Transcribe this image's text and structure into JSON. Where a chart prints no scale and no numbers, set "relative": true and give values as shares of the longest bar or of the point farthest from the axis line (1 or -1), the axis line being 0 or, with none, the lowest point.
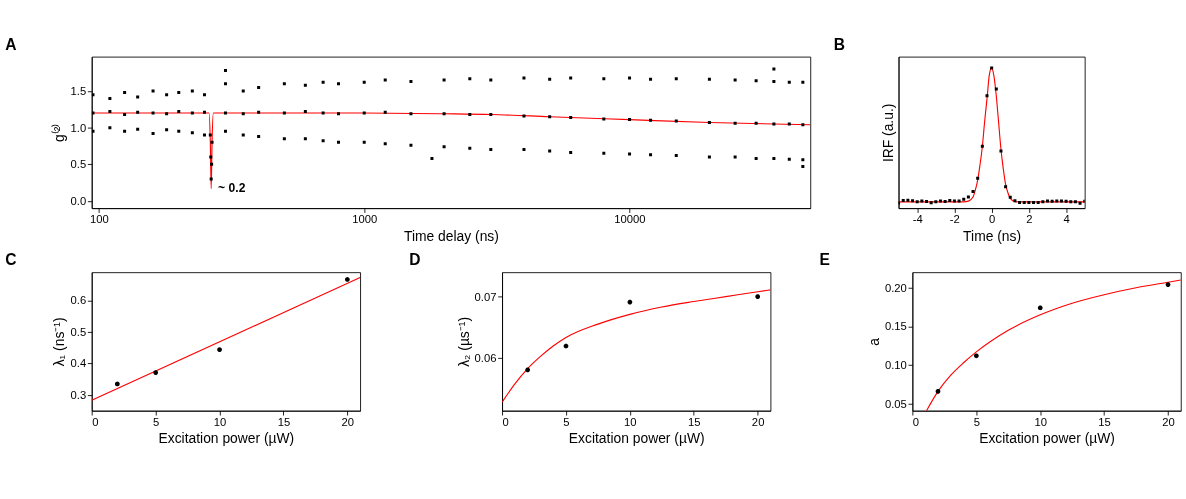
{
  "chart_data": [
    {
      "type": "scatter",
      "title": "A",
      "xlabel": "Time delay (ns)",
      "ylabel": "g⁽²⁾",
      "log": "x",
      "grid": false,
      "xlim": [
        94,
        48000
      ],
      "ylim": [
        -0.1,
        1.97
      ],
      "xticks": [
        100,
        1000,
        10000
      ],
      "yticks": [
        {
          "value": 0,
          "label": "0.0"
        },
        {
          "value": 0.5,
          "label": "0.5"
        },
        {
          "value": 1,
          "label": "1.0"
        },
        {
          "value": 1.5,
          "label": "1.5"
        }
      ],
      "annotations": [
        {
          "text": "~ 0.2",
          "x": 265,
          "y": 0.17
        }
      ],
      "series": [
        {
          "color": "#000000",
          "marker": "square",
          "x": [
            95,
            110,
            125,
            140,
            160,
            180,
            200,
            225,
            250,
            300,
            350,
            400,
            500,
            600,
            700,
            800,
            1000,
            1200,
            1500,
            2000,
            2500,
            3000,
            4000,
            5000,
            6000,
            8000,
            10000,
            12000,
            15000,
            20000,
            25000,
            30000,
            35000,
            40000,
            45000,
            95,
            110,
            125,
            140,
            160,
            180,
            200,
            225,
            250,
            300,
            350,
            400,
            500,
            600,
            700,
            800,
            1000,
            1200,
            1500,
            2000,
            2500,
            3000,
            4000,
            5000,
            6000,
            8000,
            10000,
            12000,
            15000,
            20000,
            25000,
            30000,
            35000,
            40000,
            45000,
            95,
            110,
            125,
            140,
            160,
            180,
            200,
            225,
            250,
            300,
            350,
            400,
            500,
            600,
            700,
            800,
            1000,
            1200,
            1500,
            2000,
            2500,
            3000,
            4000,
            5000,
            6000,
            8000,
            10000,
            12000,
            15000,
            20000,
            25000,
            30000,
            35000,
            40000,
            45000,
            263,
            264,
            265,
            266,
            267,
            300,
            1800,
            35000,
            45000
          ],
          "values": [
            1.45,
            1.4,
            1.48,
            1.42,
            1.5,
            1.45,
            1.48,
            1.5,
            1.45,
            1.6,
            1.5,
            1.55,
            1.6,
            1.58,
            1.62,
            1.6,
            1.62,
            1.65,
            1.63,
            1.65,
            1.67,
            1.65,
            1.68,
            1.66,
            1.68,
            1.67,
            1.68,
            1.66,
            1.67,
            1.66,
            1.65,
            1.64,
            1.63,
            1.62,
            1.62,
            1.2,
            1.22,
            1.18,
            1.21,
            1.2,
            1.19,
            1.22,
            1.2,
            1.21,
            1.2,
            1.19,
            1.21,
            1.2,
            1.22,
            1.2,
            1.19,
            1.2,
            1.21,
            1.19,
            1.19,
            1.18,
            1.18,
            1.16,
            1.15,
            1.14,
            1.12,
            1.11,
            1.1,
            1.09,
            1.07,
            1.06,
            1.06,
            1.05,
            1.05,
            1.04,
            0.95,
            1.0,
            0.95,
            0.98,
            0.92,
            0.97,
            0.95,
            0.93,
            0.9,
            0.95,
            0.9,
            0.88,
            0.85,
            0.85,
            0.82,
            0.8,
            0.8,
            0.78,
            0.76,
            0.74,
            0.72,
            0.7,
            0.7,
            0.68,
            0.66,
            0.65,
            0.64,
            0.63,
            0.62,
            0.6,
            0.6,
            0.58,
            0.58,
            0.57,
            0.56,
            0.9,
            0.6,
            0.3,
            0.5,
            0.8,
            1.78,
            0.58,
            1.8,
            0.47
          ]
        },
        {
          "type": "line",
          "color": "#ff0000",
          "x": [
            94,
            260,
            263,
            265,
            267,
            270,
            1000,
            2000,
            3000,
            5000,
            10000,
            20000,
            48000
          ],
          "values": [
            1.2,
            1.2,
            0.8,
            0.17,
            0.8,
            1.2,
            1.2,
            1.19,
            1.18,
            1.15,
            1.11,
            1.07,
            1.04
          ]
        }
      ]
    },
    {
      "type": "scatter",
      "title": "B",
      "xlabel": "Time (ns)",
      "ylabel": "IRF (a.u.)",
      "relative": true,
      "tick_labels": "x",
      "grid": false,
      "xlim": [
        -5,
        5
      ],
      "xticks": [
        -4,
        -2,
        0,
        2,
        4
      ],
      "series": [
        {
          "color": "#000000",
          "marker": "square",
          "x": [
            -5,
            -4.75,
            -4.5,
            -4.25,
            -4,
            -3.75,
            -3.5,
            -3.25,
            -3,
            -2.75,
            -2.5,
            -2.25,
            -2,
            -1.75,
            -1.5,
            -1.25,
            -1,
            -0.75,
            -0.5,
            -0.25,
            0,
            0.25,
            0.5,
            0.75,
            1,
            1.25,
            1.5,
            1.75,
            2,
            2.25,
            2.5,
            2.75,
            3,
            3.25,
            3.5,
            3.75,
            4,
            4.25,
            4.5,
            4.75,
            5
          ],
          "values": [
            0.037,
            0.055,
            0.057,
            0.053,
            0.045,
            0.051,
            0.047,
            0.039,
            0.045,
            0.051,
            0.047,
            0.055,
            0.051,
            0.051,
            0.064,
            0.08,
            0.119,
            0.213,
            0.441,
            0.801,
            1,
            0.85,
            0.408,
            0.152,
            0.078,
            0.053,
            0.041,
            0.041,
            0.041,
            0.041,
            0.041,
            0.045,
            0.051,
            0.049,
            0.051,
            0.051,
            0.049,
            0.045,
            0.045,
            0.035,
            0.049
          ]
        },
        {
          "type": "line",
          "color": "#ff0000",
          "x": [
            -5,
            -1.5,
            -1.25,
            -1,
            -0.875,
            -0.75,
            -0.625,
            -0.5,
            -0.375,
            -0.25,
            -0.125,
            0,
            0.125,
            0.25,
            0.375,
            0.5,
            0.625,
            0.75,
            0.875,
            1,
            1.25,
            1.5,
            5
          ],
          "values": [
            0.045,
            0.045,
            0.05,
            0.08,
            0.13,
            0.2,
            0.31,
            0.44,
            0.62,
            0.78,
            0.95,
            1.0,
            0.94,
            0.8,
            0.61,
            0.42,
            0.28,
            0.17,
            0.11,
            0.07,
            0.047,
            0.045,
            0.045
          ]
        }
      ]
    },
    {
      "type": "scatter",
      "title": "C",
      "xlabel": "Excitation power (µW)",
      "ylabel": "λ₁ (ns⁻¹)",
      "grid": false,
      "xlim": [
        0,
        21
      ],
      "ylim": [
        0.25,
        0.69
      ],
      "xticks": [
        0,
        5,
        10,
        15,
        20
      ],
      "yticks": [
        0.3,
        0.4,
        0.5,
        0.6
      ],
      "series": [
        {
          "color": "#000000",
          "marker": "circle",
          "x": [
            2,
            5,
            10,
            20
          ],
          "values": [
            0.335,
            0.371,
            0.444,
            0.667
          ]
        },
        {
          "type": "line",
          "color": "#ff0000",
          "x": [
            0,
            21
          ],
          "values": [
            0.283,
            0.673
          ]
        }
      ]
    },
    {
      "type": "scatter",
      "title": "D",
      "xlabel": "Excitation power (µW)",
      "ylabel": "λ₂ (µs⁻¹)",
      "grid": false,
      "xlim": [
        0,
        21
      ],
      "ylim": [
        0.0513,
        0.074
      ],
      "xticks": [
        0,
        5,
        10,
        15,
        20
      ],
      "yticks": [
        0.06,
        0.07
      ],
      "series": [
        {
          "color": "#000000",
          "marker": "circle",
          "x": [
            2,
            5,
            10,
            20
          ],
          "values": [
            0.058,
            0.0619,
            0.0691,
            0.07
          ]
        },
        {
          "type": "line",
          "color": "#ff0000",
          "x": [
            0,
            1,
            2,
            3,
            4,
            5,
            7.5,
            10,
            12.5,
            15,
            17.5,
            20,
            21
          ],
          "values": [
            0.0527,
            0.0557,
            0.0582,
            0.0602,
            0.0619,
            0.0633,
            0.0655,
            0.0671,
            0.0683,
            0.0692,
            0.07,
            0.0708,
            0.0711
          ]
        }
      ]
    },
    {
      "type": "scatter",
      "title": "E",
      "xlabel": "Excitation power (µW)",
      "ylabel": "a",
      "grid": false,
      "xlim": [
        0,
        21
      ],
      "ylim": [
        0.041,
        0.22
      ],
      "xticks": [
        0,
        5,
        10,
        15,
        20
      ],
      "yticks": [
        0.05,
        {
          "value": 0.1,
          "label": "0.10"
        },
        0.15,
        {
          "value": 0.2,
          "label": "0.20"
        }
      ],
      "series": [
        {
          "color": "#000000",
          "marker": "circle",
          "x": [
            2,
            5,
            10,
            20
          ],
          "values": [
            0.066,
            0.112,
            0.174,
            0.204
          ]
        },
        {
          "type": "line",
          "color": "#ff0000",
          "x": [
            1.1,
            2,
            3,
            4,
            5,
            7.5,
            10,
            12.5,
            15,
            17.5,
            20,
            21
          ],
          "values": [
            0.041,
            0.066,
            0.087,
            0.103,
            0.117,
            0.145,
            0.165,
            0.18,
            0.191,
            0.2,
            0.207,
            0.21
          ]
        }
      ]
    }
  ]
}
